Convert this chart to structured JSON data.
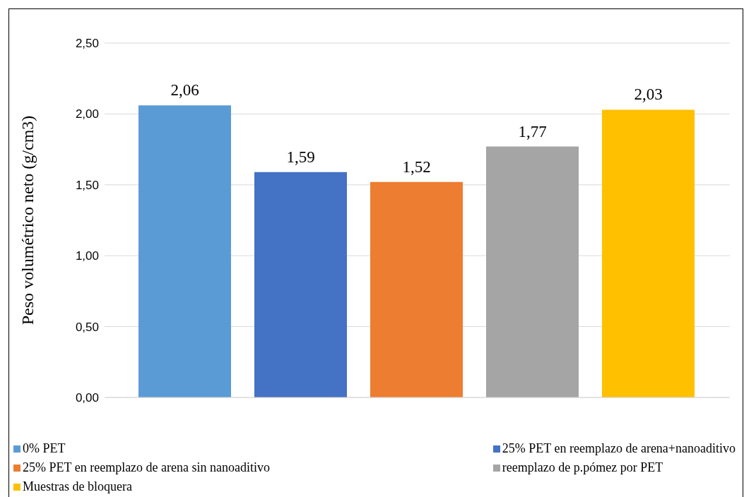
{
  "chart_data": {
    "type": "bar",
    "ylabel": "Peso volumétrico neto (g/cm3)",
    "categories": [
      null
    ],
    "series": [
      {
        "name": "0% PET",
        "color": "#5b9bd5",
        "values": [
          2.06
        ],
        "value_labels": [
          "2,06"
        ]
      },
      {
        "name": "25% PET en reemplazo de arena+nanoaditivo",
        "color": "#4472c4",
        "values": [
          1.59
        ],
        "value_labels": [
          "1,59"
        ]
      },
      {
        "name": "25% PET en reemplazo de arena sin nanoaditivo",
        "color": "#ed7d31",
        "values": [
          1.52
        ],
        "value_labels": [
          "1,52"
        ]
      },
      {
        "name": "reemplazo de p.pómez por PET",
        "color": "#a5a5a5",
        "values": [
          1.77
        ],
        "value_labels": [
          "1,77"
        ]
      },
      {
        "name": "Muestras de bloquera",
        "color": "#ffc000",
        "values": [
          2.03
        ],
        "value_labels": [
          "2,03"
        ]
      }
    ],
    "ylim": [
      0,
      2.5
    ],
    "yticks": [
      {
        "value": 0,
        "label": "0,00"
      },
      {
        "value": 0.5,
        "label": "0,50"
      },
      {
        "value": 1,
        "label": "1,00"
      },
      {
        "value": 1.5,
        "label": "1,50"
      },
      {
        "value": 2,
        "label": "2,00"
      },
      {
        "value": 2.5,
        "label": "2,50"
      }
    ],
    "grid": "y",
    "legend": "bottom"
  }
}
